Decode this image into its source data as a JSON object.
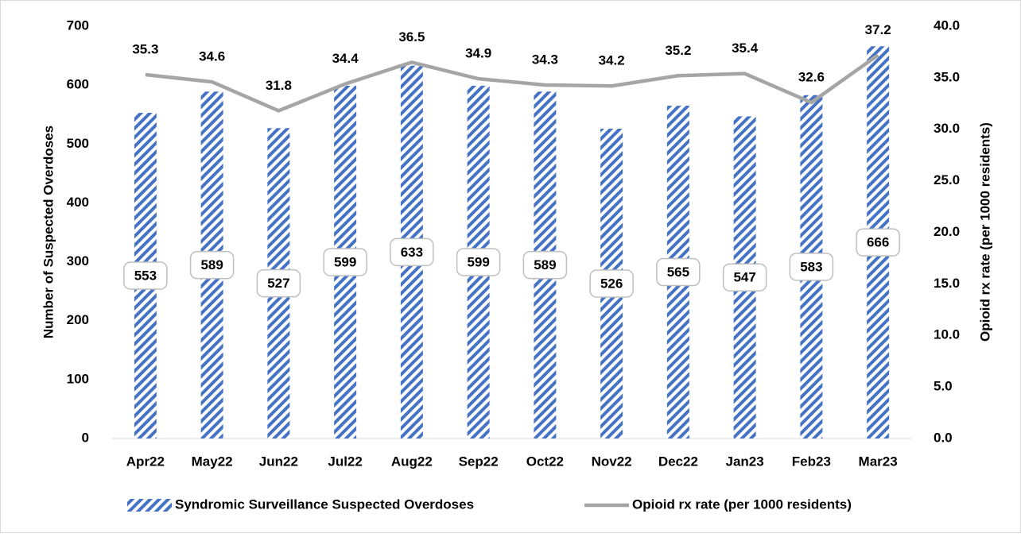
{
  "chart_data": {
    "type": "bar",
    "categories": [
      "Apr22",
      "May22",
      "Jun22",
      "Jul22",
      "Aug22",
      "Sep22",
      "Oct22",
      "Nov22",
      "Dec22",
      "Jan23",
      "Feb23",
      "Mar23"
    ],
    "series": [
      {
        "name": "Syndromic Surveillance Suspected Overdoses",
        "color": "#4472c4",
        "type": "bar",
        "values": [
          553,
          589,
          527,
          599,
          633,
          599,
          589,
          526,
          565,
          547,
          583,
          666
        ]
      },
      {
        "name": "Opioid rx rate (per 1000 residents)",
        "color": "#a5a5a5",
        "type": "line",
        "axis": "y2",
        "values": [
          35.3,
          34.6,
          31.8,
          34.4,
          36.5,
          34.9,
          34.3,
          34.2,
          35.2,
          35.4,
          32.6,
          37.2
        ]
      }
    ],
    "y_label": "Number of Suspected Overdoses",
    "y2_label": "Opioid rx rate (per 1000 residents)",
    "ylim": [
      0,
      700
    ],
    "yticks": [
      0,
      100,
      200,
      300,
      400,
      500,
      600,
      700
    ],
    "y2lim": [
      0,
      40
    ],
    "y2ticks": [
      {
        "value": 0,
        "label": "0.0"
      },
      {
        "value": 5,
        "label": "5.0"
      },
      {
        "value": 10,
        "label": "10.0"
      },
      {
        "value": 15,
        "label": "15.0"
      },
      {
        "value": 20,
        "label": "20.0"
      },
      {
        "value": 25,
        "label": "25.0"
      },
      {
        "value": 30,
        "label": "30.0"
      },
      {
        "value": 35,
        "label": "35.0"
      },
      {
        "value": 40,
        "label": "40.0"
      }
    ],
    "legend": "bottom"
  }
}
